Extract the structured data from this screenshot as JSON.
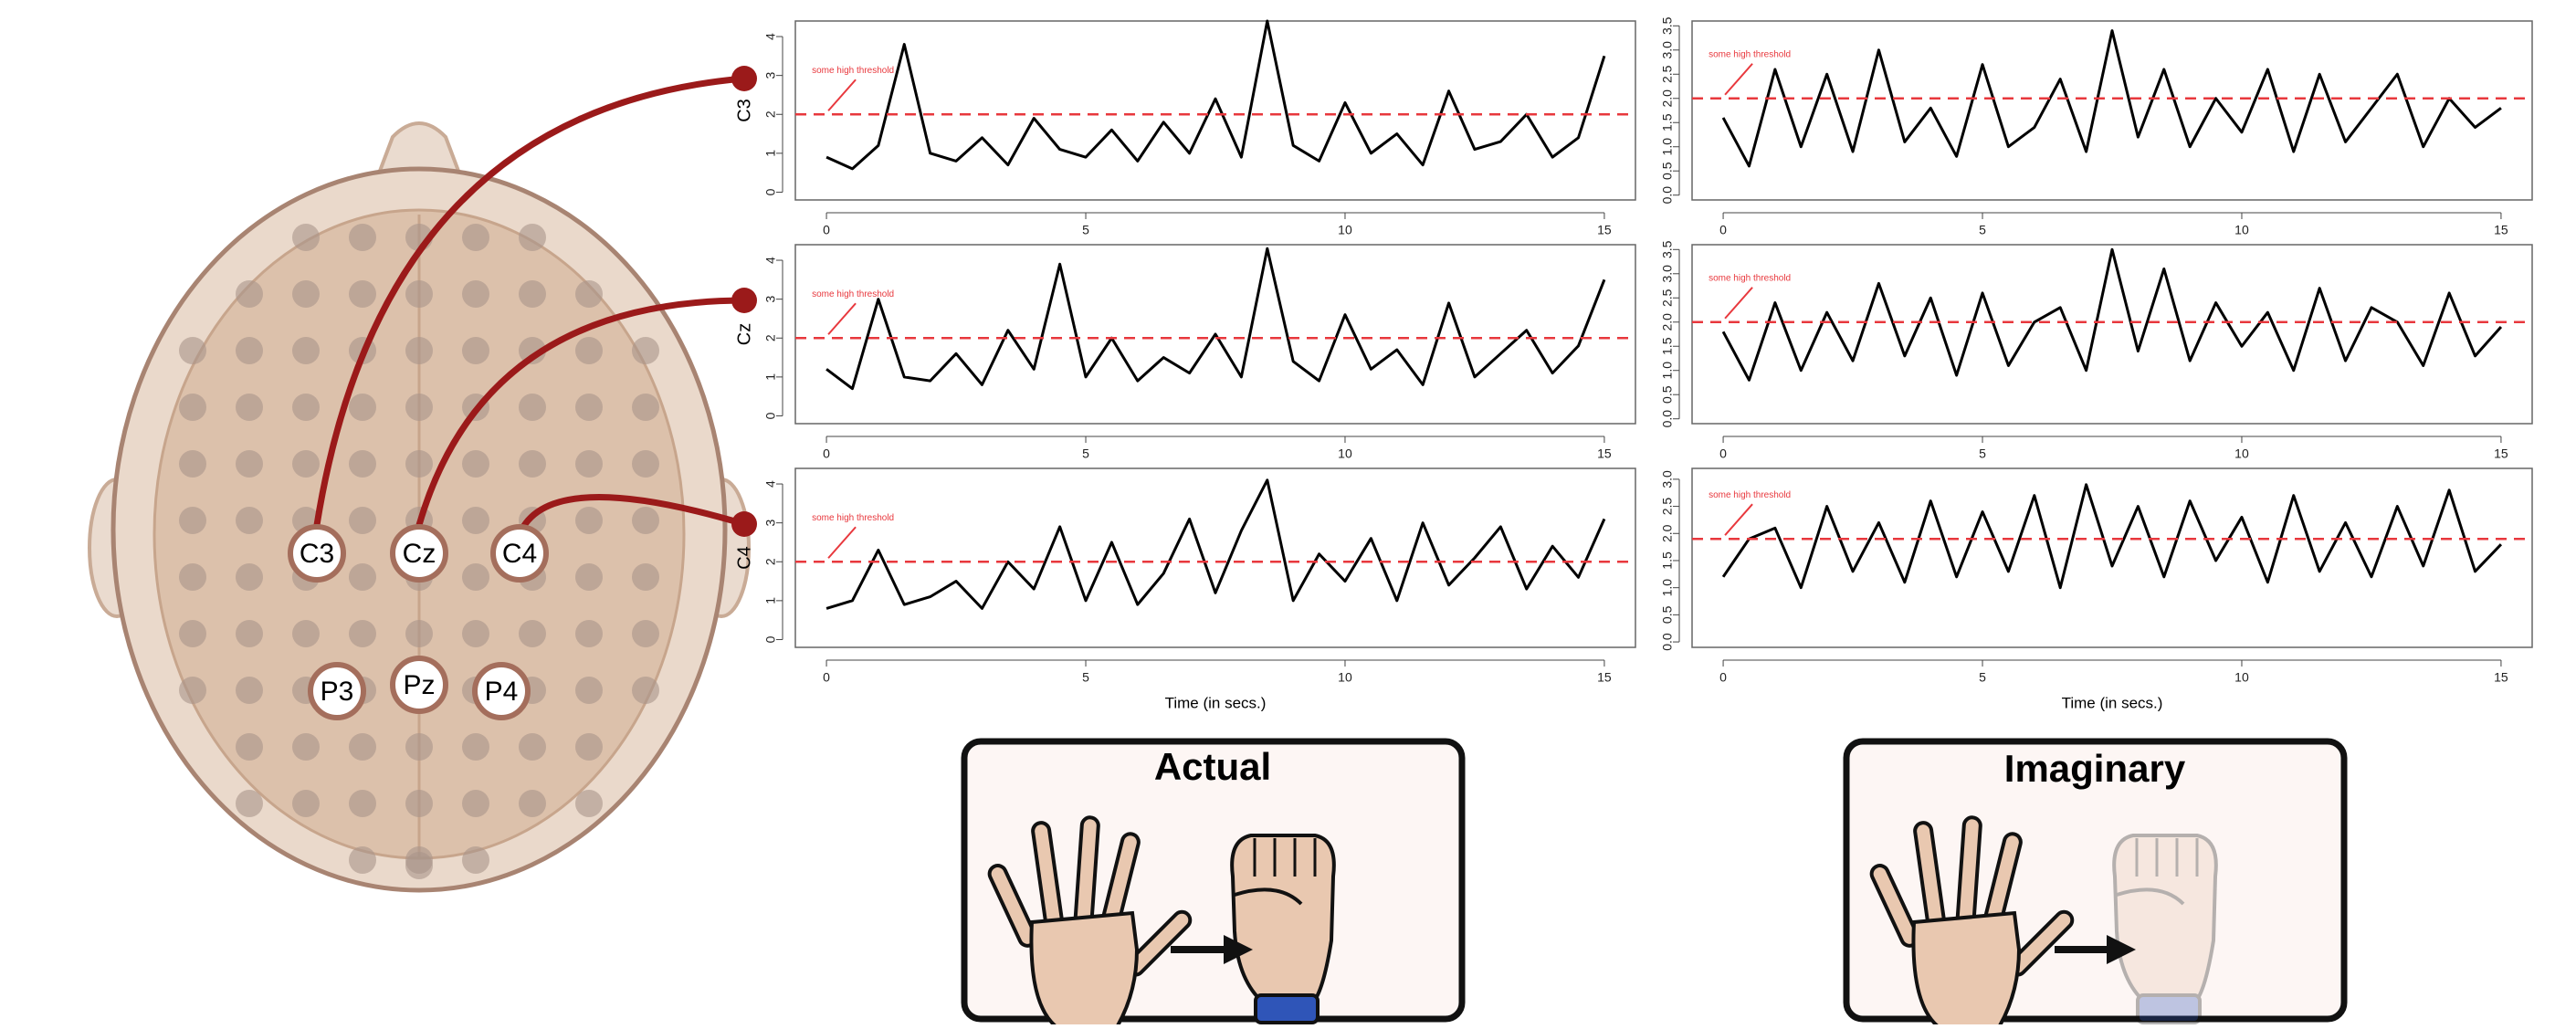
{
  "chart_data": [
    {
      "type": "line",
      "ylabel": "C3",
      "annotation": "some high threshold",
      "threshold": 2,
      "x": [
        0,
        0.5,
        1,
        1.5,
        2,
        2.5,
        3,
        3.5,
        4,
        4.5,
        5,
        5.5,
        6,
        6.5,
        7,
        7.5,
        8,
        8.5,
        9,
        9.5,
        10,
        10.5,
        11,
        11.5,
        12,
        12.5,
        13,
        13.5,
        14,
        14.5,
        15
      ],
      "values": [
        0.9,
        0.6,
        1.2,
        3.8,
        1.0,
        0.8,
        1.4,
        0.7,
        1.9,
        1.1,
        0.9,
        1.6,
        0.8,
        1.8,
        1.0,
        2.4,
        0.9,
        4.4,
        1.2,
        0.8,
        2.3,
        1.0,
        1.5,
        0.7,
        2.6,
        1.1,
        1.3,
        2.0,
        0.9,
        1.4,
        3.5
      ],
      "xlim": [
        -0.6,
        15.6
      ],
      "xticks": [
        0,
        5,
        10,
        15
      ],
      "ylim": [
        -0.2,
        4.4
      ],
      "yticks": [
        0,
        1,
        2,
        3,
        4
      ],
      "color": "#000000"
    },
    {
      "type": "line",
      "annotation": "some high threshold",
      "threshold": 2,
      "x": [
        0,
        0.5,
        1,
        1.5,
        2,
        2.5,
        3,
        3.5,
        4,
        4.5,
        5,
        5.5,
        6,
        6.5,
        7,
        7.5,
        8,
        8.5,
        9,
        9.5,
        10,
        10.5,
        11,
        11.5,
        12,
        12.5,
        13,
        13.5,
        14,
        14.5,
        15
      ],
      "values": [
        1.6,
        0.6,
        2.6,
        1.0,
        2.5,
        0.9,
        3.0,
        1.1,
        1.8,
        0.8,
        2.7,
        1.0,
        1.4,
        2.4,
        0.9,
        3.4,
        1.2,
        2.6,
        1.0,
        2.0,
        1.3,
        2.6,
        0.9,
        2.5,
        1.1,
        1.8,
        2.5,
        1.0,
        2.0,
        1.4,
        1.8
      ],
      "xlim": [
        -0.6,
        15.6
      ],
      "xticks": [
        0,
        5,
        10,
        15
      ],
      "ylim": [
        -0.1,
        3.6
      ],
      "yticks": [
        {
          "value": 0,
          "label": "0.0"
        },
        0.5,
        {
          "value": 1,
          "label": "1.0"
        },
        1.5,
        {
          "value": 2,
          "label": "2.0"
        },
        2.5,
        {
          "value": 3,
          "label": "3.0"
        },
        3.5
      ],
      "color": "#000000"
    },
    {
      "type": "line",
      "ylabel": "Cz",
      "annotation": "some high threshold",
      "threshold": 2,
      "x": [
        0,
        0.5,
        1,
        1.5,
        2,
        2.5,
        3,
        3.5,
        4,
        4.5,
        5,
        5.5,
        6,
        6.5,
        7,
        7.5,
        8,
        8.5,
        9,
        9.5,
        10,
        10.5,
        11,
        11.5,
        12,
        12.5,
        13,
        13.5,
        14,
        14.5,
        15
      ],
      "values": [
        1.2,
        0.7,
        3.0,
        1.0,
        0.9,
        1.6,
        0.8,
        2.2,
        1.2,
        3.9,
        1.0,
        2.0,
        0.9,
        1.5,
        1.1,
        2.1,
        1.0,
        4.3,
        1.4,
        0.9,
        2.6,
        1.2,
        1.7,
        0.8,
        2.9,
        1.0,
        1.6,
        2.2,
        1.1,
        1.8,
        3.5
      ],
      "xlim": [
        -0.6,
        15.6
      ],
      "xticks": [
        0,
        5,
        10,
        15
      ],
      "ylim": [
        -0.2,
        4.4
      ],
      "yticks": [
        0,
        1,
        2,
        3,
        4
      ],
      "color": "#000000"
    },
    {
      "type": "line",
      "annotation": "some high threshold",
      "threshold": 2,
      "x": [
        0,
        0.5,
        1,
        1.5,
        2,
        2.5,
        3,
        3.5,
        4,
        4.5,
        5,
        5.5,
        6,
        6.5,
        7,
        7.5,
        8,
        8.5,
        9,
        9.5,
        10,
        10.5,
        11,
        11.5,
        12,
        12.5,
        13,
        13.5,
        14,
        14.5,
        15
      ],
      "values": [
        1.8,
        0.8,
        2.4,
        1.0,
        2.2,
        1.2,
        2.8,
        1.3,
        2.5,
        0.9,
        2.6,
        1.1,
        2.0,
        2.3,
        1.0,
        3.5,
        1.4,
        3.1,
        1.2,
        2.4,
        1.5,
        2.2,
        1.0,
        2.7,
        1.2,
        2.3,
        2.0,
        1.1,
        2.6,
        1.3,
        1.9
      ],
      "xlim": [
        -0.6,
        15.6
      ],
      "xticks": [
        0,
        5,
        10,
        15
      ],
      "ylim": [
        -0.1,
        3.6
      ],
      "yticks": [
        {
          "value": 0,
          "label": "0.0"
        },
        0.5,
        {
          "value": 1,
          "label": "1.0"
        },
        1.5,
        {
          "value": 2,
          "label": "2.0"
        },
        2.5,
        {
          "value": 3,
          "label": "3.0"
        },
        3.5
      ],
      "color": "#000000"
    },
    {
      "type": "line",
      "ylabel": "C4",
      "xlabel": "Time (in secs.)",
      "annotation": "some high threshold",
      "threshold": 2,
      "x": [
        0,
        0.5,
        1,
        1.5,
        2,
        2.5,
        3,
        3.5,
        4,
        4.5,
        5,
        5.5,
        6,
        6.5,
        7,
        7.5,
        8,
        8.5,
        9,
        9.5,
        10,
        10.5,
        11,
        11.5,
        12,
        12.5,
        13,
        13.5,
        14,
        14.5,
        15
      ],
      "values": [
        0.8,
        1.0,
        2.3,
        0.9,
        1.1,
        1.5,
        0.8,
        2.0,
        1.3,
        2.9,
        1.0,
        2.5,
        0.9,
        1.7,
        3.1,
        1.2,
        2.8,
        4.1,
        1.0,
        2.2,
        1.5,
        2.6,
        1.0,
        3.0,
        1.4,
        2.1,
        2.9,
        1.3,
        2.4,
        1.6,
        3.1
      ],
      "xlim": [
        -0.6,
        15.6
      ],
      "xticks": [
        0,
        5,
        10,
        15
      ],
      "ylim": [
        -0.2,
        4.4
      ],
      "yticks": [
        0,
        1,
        2,
        3,
        4
      ],
      "color": "#000000"
    },
    {
      "type": "line",
      "xlabel": "Time (in secs.)",
      "annotation": "some high threshold",
      "threshold": 1.9,
      "x": [
        0,
        0.5,
        1,
        1.5,
        2,
        2.5,
        3,
        3.5,
        4,
        4.5,
        5,
        5.5,
        6,
        6.5,
        7,
        7.5,
        8,
        8.5,
        9,
        9.5,
        10,
        10.5,
        11,
        11.5,
        12,
        12.5,
        13,
        13.5,
        14,
        14.5,
        15
      ],
      "values": [
        1.2,
        1.9,
        2.1,
        1.0,
        2.5,
        1.3,
        2.2,
        1.1,
        2.6,
        1.2,
        2.4,
        1.3,
        2.7,
        1.0,
        2.9,
        1.4,
        2.5,
        1.2,
        2.6,
        1.5,
        2.3,
        1.1,
        2.7,
        1.3,
        2.2,
        1.2,
        2.5,
        1.4,
        2.8,
        1.3,
        1.8
      ],
      "xlim": [
        -0.6,
        15.6
      ],
      "xticks": [
        0,
        5,
        10,
        15
      ],
      "ylim": [
        -0.1,
        3.2
      ],
      "yticks": [
        {
          "value": 0,
          "label": "0.0"
        },
        0.5,
        {
          "value": 1,
          "label": "1.0"
        },
        1.5,
        {
          "value": 2,
          "label": "2.0"
        },
        2.5,
        {
          "value": 3,
          "label": "3.0"
        }
      ],
      "color": "#000000"
    }
  ],
  "electrodes": [
    "C3",
    "Cz",
    "C4",
    "P3",
    "Pz",
    "P4"
  ],
  "panels": [
    {
      "title": "Actual"
    },
    {
      "title": "Imaginary"
    }
  ]
}
